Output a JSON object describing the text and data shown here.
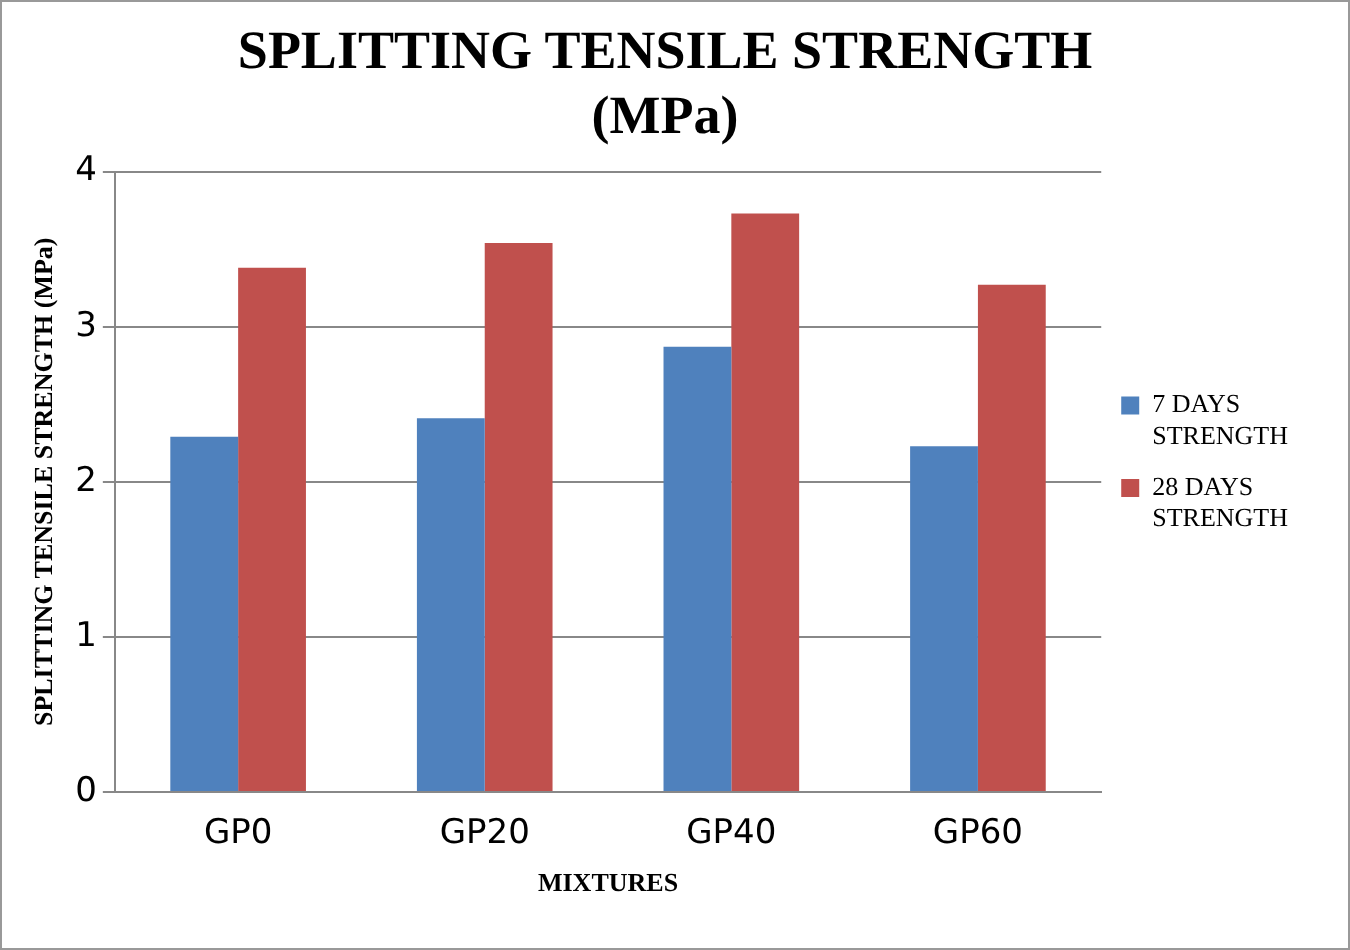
{
  "chart_data": {
    "type": "bar",
    "title": "SPLITTING TENSILE STRENGTH (MPa)",
    "xlabel": "MIXTURES",
    "ylabel": "SPLITTING TENSILE STRENGTH (MPa)",
    "categories": [
      "GP0",
      "GP20",
      "GP40",
      "GP60"
    ],
    "series": [
      {
        "name": "7 DAYS STRENGTH",
        "color": "#4f81bd",
        "values": [
          2.29,
          2.41,
          2.87,
          2.23
        ]
      },
      {
        "name": "28 DAYS STRENGTH",
        "color": "#c0504d",
        "values": [
          3.38,
          3.54,
          3.73,
          3.27
        ]
      }
    ],
    "ylim": [
      0,
      4
    ],
    "yticks": [
      0,
      1,
      2,
      3,
      4
    ],
    "grid": "y",
    "legend": "right"
  }
}
